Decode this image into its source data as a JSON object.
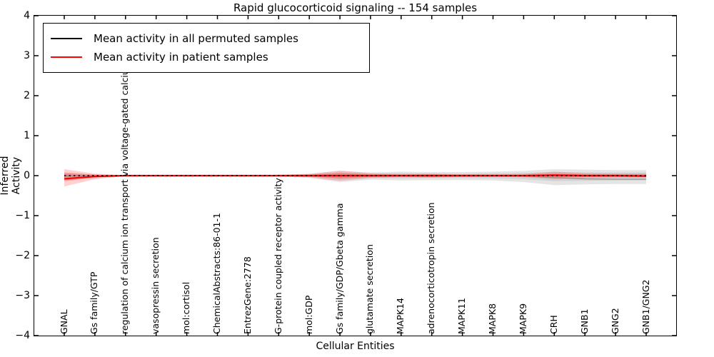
{
  "figure": {
    "title": "Rapid glucocorticoid signaling -- 154 samples",
    "xlabel": "Cellular Entities",
    "ylabel": "Inferred Activity"
  },
  "chart_data": {
    "type": "line",
    "title": "Rapid glucocorticoid signaling -- 154 samples",
    "xlabel": "Cellular Entities",
    "ylabel": "Inferred Activity",
    "ylim": [
      -4,
      4
    ],
    "grid": false,
    "legend_position": "upper left",
    "y_ticks": {
      "values": [
        4,
        3,
        2,
        1,
        0,
        -1,
        -2,
        -3,
        -4
      ],
      "labels": [
        "4",
        "3",
        "2",
        "1",
        "0",
        "−1",
        "−2",
        "−3",
        "−4"
      ]
    },
    "categories": [
      "GNAL",
      "Gs family/GTP",
      "regulation of calcium ion transport via voltage-gated calcium channel",
      "vasopressin secretion",
      "mol:cortisol",
      "ChemicalAbstracts:86-01-1",
      "EntrezGene:2778",
      "G-protein coupled receptor activity",
      "mol:GDP",
      "Gs family/GDP/Gbeta gamma",
      "glutamate secretion",
      "MAPK14",
      "adrenocorticotropin secretion",
      "MAPK11",
      "MAPK8",
      "MAPK9",
      "CRH",
      "GNB1",
      "GNG2",
      "GNB1/GNG2"
    ],
    "series": [
      {
        "name": "permuted-sample-trace",
        "color": "#909090",
        "width": 1.2,
        "dash": "",
        "values": [
          0,
          0,
          0,
          0,
          0,
          0,
          0,
          0,
          0,
          0,
          0,
          0,
          0,
          0,
          0,
          -0.01,
          -0.05,
          -0.08,
          -0.09,
          -0.09
        ]
      },
      {
        "name": "Mean activity in patient samples",
        "color": "#ff0000",
        "width": 2.2,
        "dash": "",
        "values": [
          -0.08,
          -0.02,
          0,
          0,
          0,
          0,
          0,
          0,
          0,
          0,
          0,
          0,
          0,
          0,
          0,
          0,
          0.01,
          0,
          0,
          -0.01
        ]
      },
      {
        "name": "Mean activity in all permuted samples",
        "color": "#000000",
        "width": 1.6,
        "dash": "2.5 4",
        "values": [
          0,
          0,
          0,
          0,
          0,
          0,
          0,
          0,
          0,
          0,
          0,
          0,
          0,
          0,
          0,
          0,
          0,
          0,
          0,
          0
        ]
      }
    ],
    "bands": [
      {
        "name": "permuted-band-outer",
        "color": "rgba(0,0,0,0.10)",
        "upper": [
          0.06,
          0.02,
          0.01,
          0.01,
          0.01,
          0.01,
          0.01,
          0.02,
          0.05,
          0.11,
          0.08,
          0.1,
          0.09,
          0.09,
          0.1,
          0.12,
          0.16,
          0.15,
          0.14,
          0.14
        ],
        "lower": [
          -0.08,
          -0.03,
          -0.01,
          -0.01,
          -0.01,
          -0.01,
          -0.01,
          -0.02,
          -0.06,
          -0.16,
          -0.1,
          -0.12,
          -0.11,
          -0.11,
          -0.12,
          -0.16,
          -0.24,
          -0.22,
          -0.21,
          -0.21
        ]
      },
      {
        "name": "permuted-band-inner",
        "color": "rgba(0,0,0,0.08)",
        "upper": [
          0.03,
          0.01,
          0.01,
          0.01,
          0.01,
          0.01,
          0.01,
          0.01,
          0.03,
          0.06,
          0.05,
          0.06,
          0.05,
          0.05,
          0.06,
          0.07,
          0.09,
          0.08,
          0.08,
          0.08
        ],
        "lower": [
          -0.04,
          -0.02,
          -0.01,
          -0.01,
          -0.01,
          -0.01,
          -0.01,
          -0.01,
          -0.03,
          -0.08,
          -0.06,
          -0.07,
          -0.06,
          -0.06,
          -0.07,
          -0.09,
          -0.14,
          -0.13,
          -0.12,
          -0.12
        ]
      },
      {
        "name": "patient-band-outer",
        "color": "rgba(255,0,0,0.18)",
        "upper": [
          0.16,
          0.05,
          0.01,
          0.01,
          0.01,
          0.01,
          0.01,
          0.02,
          0.04,
          0.13,
          0.06,
          0.04,
          0.05,
          0.03,
          0.03,
          0.04,
          0.1,
          0.06,
          0.05,
          0.05
        ],
        "lower": [
          -0.27,
          -0.09,
          -0.01,
          -0.01,
          -0.01,
          -0.01,
          -0.01,
          -0.02,
          -0.04,
          -0.13,
          -0.06,
          -0.04,
          -0.05,
          -0.03,
          -0.03,
          -0.04,
          -0.09,
          -0.06,
          -0.05,
          -0.05
        ]
      },
      {
        "name": "patient-band-inner",
        "color": "rgba(255,0,0,0.22)",
        "upper": [
          0.08,
          0.03,
          0.01,
          0.01,
          0.01,
          0.01,
          0.01,
          0.01,
          0.02,
          0.07,
          0.03,
          0.02,
          0.03,
          0.02,
          0.02,
          0.02,
          0.05,
          0.03,
          0.03,
          0.03
        ],
        "lower": [
          -0.14,
          -0.05,
          -0.01,
          -0.01,
          -0.01,
          -0.01,
          -0.01,
          -0.01,
          -0.02,
          -0.07,
          -0.03,
          -0.02,
          -0.03,
          -0.02,
          -0.02,
          -0.02,
          -0.05,
          -0.03,
          -0.03,
          -0.03
        ]
      }
    ],
    "legend": {
      "entries": [
        {
          "label": "Mean activity in all permuted samples",
          "color": "#000000"
        },
        {
          "label": "Mean activity in patient samples",
          "color": "#ff0000"
        }
      ]
    }
  }
}
